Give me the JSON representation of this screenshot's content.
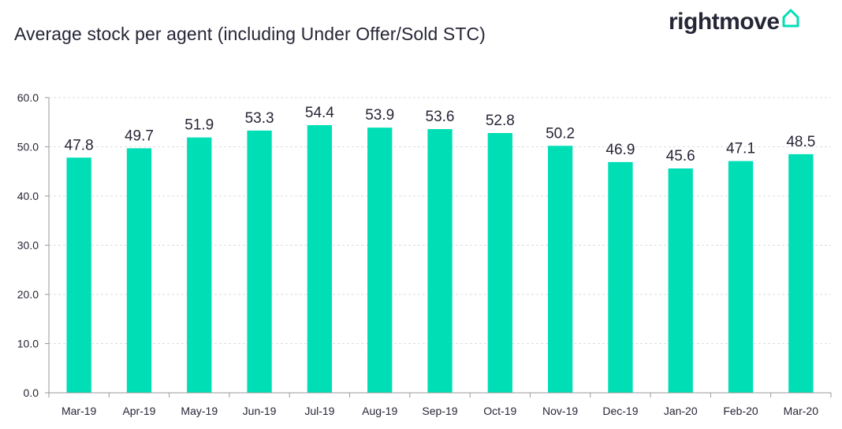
{
  "header": {
    "title": "Average stock per agent (including Under Offer/Sold STC)"
  },
  "brand": {
    "name": "rightmove",
    "icon": "house-outline-icon",
    "icon_color": "#00DEB6"
  },
  "colors": {
    "bar": "#00DEB6",
    "text": "#262637",
    "grid": "#DDDDDD",
    "axis": "#9A9A9A"
  },
  "chart_data": {
    "type": "bar",
    "title": "Average stock per agent (including Under Offer/Sold STC)",
    "xlabel": "",
    "ylabel": "",
    "categories": [
      "Mar-19",
      "Apr-19",
      "May-19",
      "Jun-19",
      "Jul-19",
      "Aug-19",
      "Sep-19",
      "Oct-19",
      "Nov-19",
      "Dec-19",
      "Jan-20",
      "Feb-20",
      "Mar-20"
    ],
    "values": [
      47.8,
      49.7,
      51.9,
      53.3,
      54.4,
      53.9,
      53.6,
      52.8,
      50.2,
      46.9,
      45.6,
      47.1,
      48.5
    ],
    "value_labels": [
      "47.8",
      "49.7",
      "51.9",
      "53.3",
      "54.4",
      "53.9",
      "53.6",
      "52.8",
      "50.2",
      "46.9",
      "45.6",
      "47.1",
      "48.5"
    ],
    "ylim": [
      0,
      60
    ],
    "yticks": [
      0,
      10,
      20,
      30,
      40,
      50,
      60
    ],
    "ytick_labels": [
      "0.0",
      "10.0",
      "20.0",
      "30.0",
      "40.0",
      "50.0",
      "60.0"
    ],
    "grid": true,
    "legend": "none"
  }
}
